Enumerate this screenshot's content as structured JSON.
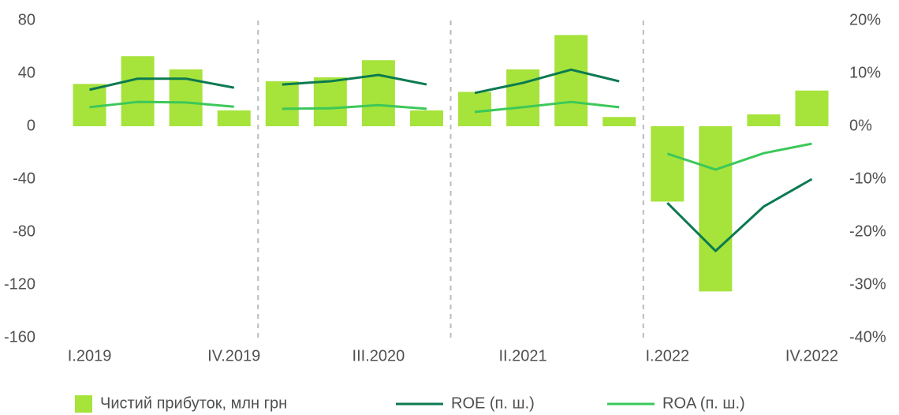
{
  "chart_data": {
    "type": "bar",
    "categories": [
      "I.2019",
      null,
      null,
      "IV.2019",
      null,
      null,
      "III.2020",
      null,
      null,
      "II.2021",
      null,
      null,
      "I.2022",
      null,
      null,
      "IV.2022"
    ],
    "group_size": 4,
    "series": [
      {
        "name": "Чистий прибуток, млн грн",
        "type": "bar",
        "color": "#a6e33b",
        "values": [
          32,
          53,
          43,
          12,
          34,
          37,
          50,
          12,
          26,
          43,
          69,
          7,
          -57,
          -125,
          9,
          27
        ]
      },
      {
        "name": "ROE (п. ш.)",
        "type": "line",
        "axis": "y2",
        "color": "#0b7a50",
        "values": [
          6.9,
          9,
          9,
          7.3,
          7.9,
          8.5,
          9.7,
          7.9,
          6.3,
          8.2,
          10.7,
          8.5,
          -14.5,
          -23.6,
          -15.2,
          -10
        ]
      },
      {
        "name": "ROA (п. ш.)",
        "type": "line",
        "axis": "y2",
        "color": "#3cc85a",
        "values": [
          3.6,
          4.6,
          4.5,
          3.7,
          3.3,
          3.4,
          4,
          3.3,
          2.7,
          3.6,
          4.6,
          3.6,
          -5.2,
          -8.2,
          -5.1,
          -3.3
        ]
      }
    ],
    "ylim": [
      -160,
      80
    ],
    "yticks": [
      -160,
      -120,
      -80,
      -40,
      0,
      40,
      80
    ],
    "y2lim": [
      -40,
      20
    ],
    "y2ticks": [
      {
        "value": -40,
        "label": "-40%"
      },
      {
        "value": -30,
        "label": "-30%"
      },
      {
        "value": -20,
        "label": "-20%"
      },
      {
        "value": -10,
        "label": "-10%"
      },
      {
        "value": 0,
        "label": "0%"
      },
      {
        "value": 10,
        "label": "10%"
      },
      {
        "value": 20,
        "label": "20%"
      }
    ],
    "legend": "bottom"
  }
}
